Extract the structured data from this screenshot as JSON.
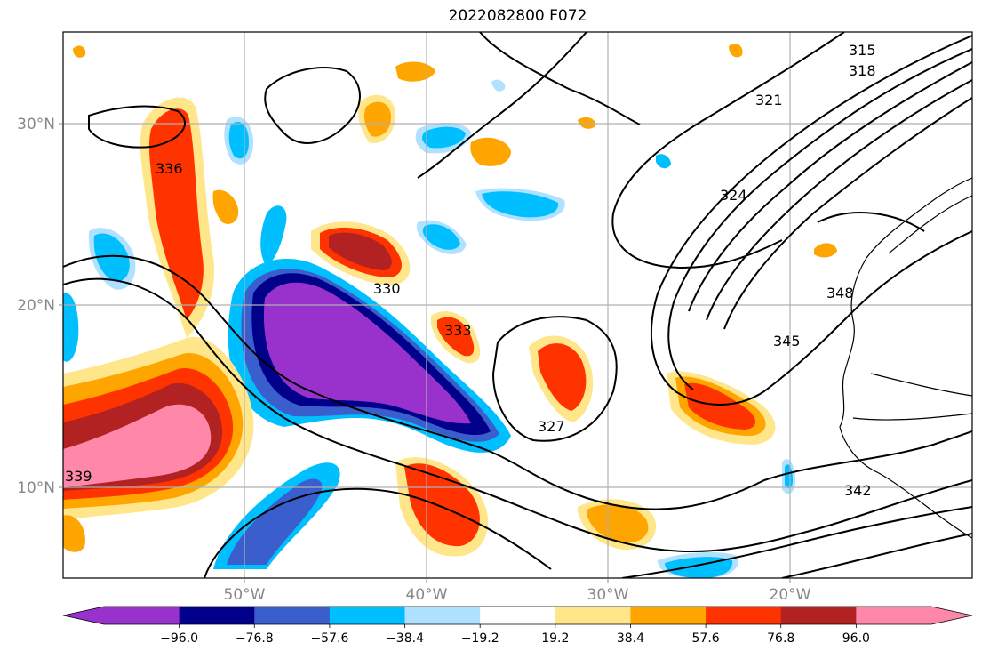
{
  "title": "2022082800 F072",
  "map": {
    "lat_ticks": [
      "30°N",
      "20°N",
      "10°N"
    ],
    "lon_ticks": [
      "50°W",
      "40°W",
      "30°W",
      "20°W"
    ],
    "contour_labels": [
      "315",
      "318",
      "321",
      "324",
      "327",
      "330",
      "333",
      "336",
      "339",
      "342",
      "345",
      "348"
    ]
  },
  "colorbar": {
    "ticks": [
      "−96.0",
      "−76.8",
      "−57.6",
      "−38.4",
      "−19.2",
      "19.2",
      "38.4",
      "57.6",
      "76.8",
      "96.0"
    ],
    "colors": [
      "#9932CC",
      "#00008B",
      "#3A5FCD",
      "#00BFFF",
      "#B0E2FF",
      "#FFFFFF",
      "#FFE68A",
      "#FFA500",
      "#FF3300",
      "#B22222",
      "#FF88AA"
    ]
  }
}
